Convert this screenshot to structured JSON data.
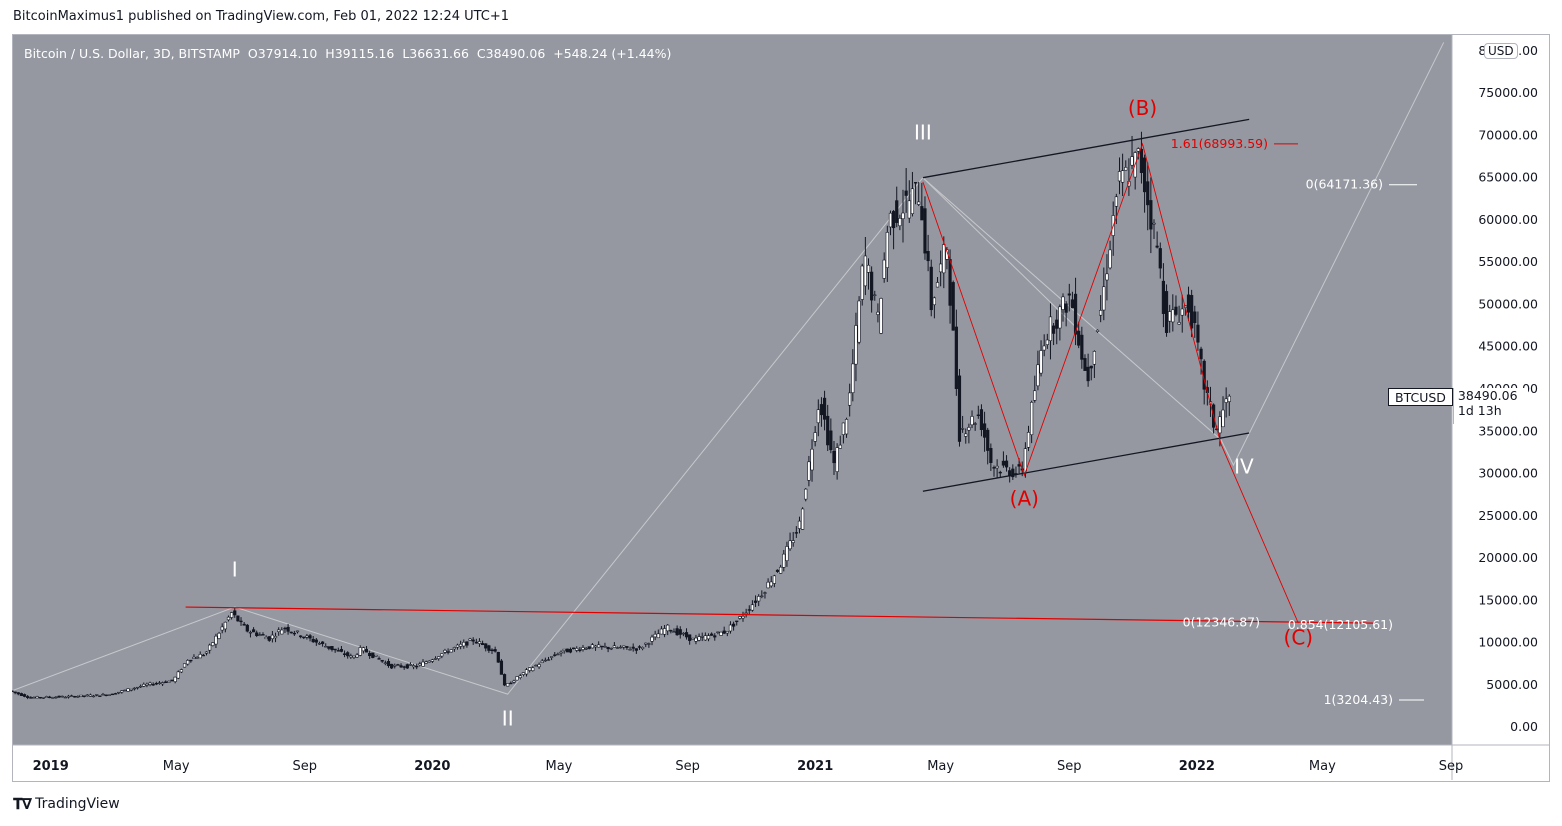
{
  "header": {
    "publisher": "BitcoinMaximus1 published on TradingView.com, Feb 01, 2022 12:24 UTC+1"
  },
  "symbol_info": {
    "name": "Bitcoin / U.S. Dollar, 3D, BITSTAMP",
    "open_k": "O",
    "open": "37914.10",
    "high_k": "H",
    "high": "39115.16",
    "low_k": "L",
    "low": "36631.66",
    "close_k": "C",
    "close": "38490.06",
    "change": "+548.24 (+1.44%)"
  },
  "currency_button": "USD",
  "price_tag": {
    "symbol": "BTCUSD",
    "price": "38490.06",
    "countdown": "1d 13h"
  },
  "footer": {
    "brand": "TradingView"
  },
  "colors": {
    "background": "#9598a1",
    "candle": "#131722",
    "wave_red": "#e00000",
    "wave_white": "#ffffff",
    "gridline_light": "#c6c8cc",
    "channel": "#131722",
    "axis_text": "#131722"
  },
  "chart_data": {
    "type": "candlestick",
    "ylim": [
      -2000,
      82000
    ],
    "y_ticks": [
      "80000.00",
      "75000.00",
      "70000.00",
      "65000.00",
      "60000.00",
      "55000.00",
      "50000.00",
      "45000.00",
      "40000.00",
      "35000.00",
      "30000.00",
      "25000.00",
      "20000.00",
      "15000.00",
      "10000.00",
      "5000.00",
      "0.00"
    ],
    "y_tick_values": [
      80000,
      75000,
      70000,
      65000,
      60000,
      55000,
      50000,
      45000,
      40000,
      35000,
      30000,
      25000,
      20000,
      15000,
      10000,
      5000,
      0
    ],
    "x_ticks": [
      {
        "label": "2019",
        "date": "2019-01-01",
        "bold": true
      },
      {
        "label": "May",
        "date": "2019-05-01",
        "bold": false
      },
      {
        "label": "Sep",
        "date": "2019-09-01",
        "bold": false
      },
      {
        "label": "2020",
        "date": "2020-01-01",
        "bold": true
      },
      {
        "label": "May",
        "date": "2020-05-01",
        "bold": false
      },
      {
        "label": "Sep",
        "date": "2020-09-01",
        "bold": false
      },
      {
        "label": "2021",
        "date": "2021-01-01",
        "bold": true
      },
      {
        "label": "May",
        "date": "2021-05-01",
        "bold": false
      },
      {
        "label": "Sep",
        "date": "2021-09-01",
        "bold": false
      },
      {
        "label": "2022",
        "date": "2022-01-01",
        "bold": true
      },
      {
        "label": "May",
        "date": "2022-05-01",
        "bold": false
      },
      {
        "label": "Sep",
        "date": "2022-09-01",
        "bold": false
      }
    ],
    "x_range": [
      "2018-11-25",
      "2022-09-01"
    ],
    "price_path": [
      {
        "date": "2018-11-25",
        "price": 4300
      },
      {
        "date": "2018-12-15",
        "price": 3500
      },
      {
        "date": "2019-01-20",
        "price": 3600
      },
      {
        "date": "2019-03-01",
        "price": 3850
      },
      {
        "date": "2019-04-05",
        "price": 5000
      },
      {
        "date": "2019-05-01",
        "price": 5500
      },
      {
        "date": "2019-05-15",
        "price": 8000
      },
      {
        "date": "2019-06-01",
        "price": 8700
      },
      {
        "date": "2019-06-26",
        "price": 13500
      },
      {
        "date": "2019-07-10",
        "price": 11500
      },
      {
        "date": "2019-08-01",
        "price": 10500
      },
      {
        "date": "2019-08-15",
        "price": 11800
      },
      {
        "date": "2019-09-20",
        "price": 9800
      },
      {
        "date": "2019-10-20",
        "price": 8200
      },
      {
        "date": "2019-10-28",
        "price": 9300
      },
      {
        "date": "2019-11-25",
        "price": 7200
      },
      {
        "date": "2019-12-20",
        "price": 7200
      },
      {
        "date": "2020-01-15",
        "price": 8800
      },
      {
        "date": "2020-02-12",
        "price": 10300
      },
      {
        "date": "2020-03-05",
        "price": 8900
      },
      {
        "date": "2020-03-13",
        "price": 4800
      },
      {
        "date": "2020-04-05",
        "price": 6800
      },
      {
        "date": "2020-05-05",
        "price": 8900
      },
      {
        "date": "2020-06-01",
        "price": 9500
      },
      {
        "date": "2020-07-20",
        "price": 9300
      },
      {
        "date": "2020-08-15",
        "price": 11800
      },
      {
        "date": "2020-09-10",
        "price": 10300
      },
      {
        "date": "2020-10-10",
        "price": 11300
      },
      {
        "date": "2020-10-25",
        "price": 13000
      },
      {
        "date": "2020-11-15",
        "price": 16000
      },
      {
        "date": "2020-12-01",
        "price": 19000
      },
      {
        "date": "2020-12-20",
        "price": 24000
      },
      {
        "date": "2021-01-08",
        "price": 39000
      },
      {
        "date": "2021-01-22",
        "price": 31000
      },
      {
        "date": "2021-02-05",
        "price": 38000
      },
      {
        "date": "2021-02-20",
        "price": 56000
      },
      {
        "date": "2021-03-05",
        "price": 48000
      },
      {
        "date": "2021-03-15",
        "price": 60000
      },
      {
        "date": "2021-04-14",
        "price": 63500
      },
      {
        "date": "2021-04-25",
        "price": 50000
      },
      {
        "date": "2021-05-10",
        "price": 57000
      },
      {
        "date": "2021-05-22",
        "price": 35000
      },
      {
        "date": "2021-06-10",
        "price": 37000
      },
      {
        "date": "2021-06-22",
        "price": 31000
      },
      {
        "date": "2021-07-20",
        "price": 30000
      },
      {
        "date": "2021-08-10",
        "price": 46000
      },
      {
        "date": "2021-09-05",
        "price": 51000
      },
      {
        "date": "2021-09-21",
        "price": 41000
      },
      {
        "date": "2021-10-05",
        "price": 50000
      },
      {
        "date": "2021-10-20",
        "price": 64000
      },
      {
        "date": "2021-11-10",
        "price": 67500
      },
      {
        "date": "2021-11-28",
        "price": 56000
      },
      {
        "date": "2021-12-05",
        "price": 48000
      },
      {
        "date": "2021-12-28",
        "price": 50000
      },
      {
        "date": "2022-01-10",
        "price": 41000
      },
      {
        "date": "2022-01-22",
        "price": 35000
      },
      {
        "date": "2022-02-01",
        "price": 38490
      }
    ],
    "wave_labels": [
      {
        "text": "I",
        "date": "2019-06-26",
        "price": 17800,
        "color": "white"
      },
      {
        "text": "II",
        "date": "2020-03-13",
        "price": 200,
        "color": "white"
      },
      {
        "text": "III",
        "date": "2021-04-14",
        "price": 69500,
        "color": "white"
      },
      {
        "text": "IV",
        "date": "2022-02-15",
        "price": 30000,
        "color": "white"
      },
      {
        "text": "(A)",
        "date": "2021-07-20",
        "price": 26200,
        "color": "red"
      },
      {
        "text": "(B)",
        "date": "2021-11-10",
        "price": 72400,
        "color": "red"
      },
      {
        "text": "(C)",
        "date": "2022-04-08",
        "price": 9800,
        "color": "red"
      }
    ],
    "fib_labels": [
      {
        "text": "1.61(68993.59)",
        "price": 68993.59,
        "color": "red"
      },
      {
        "text": "0(64171.36)",
        "price": 64171.36,
        "color": "white"
      },
      {
        "text": "0(12346.87)",
        "price": 12346.87,
        "color": "white"
      },
      {
        "text": "0.854(12105.61)",
        "price": 12105.61,
        "color": "white"
      },
      {
        "text": "1(3204.43)",
        "price": 3204.43,
        "color": "white"
      }
    ]
  }
}
